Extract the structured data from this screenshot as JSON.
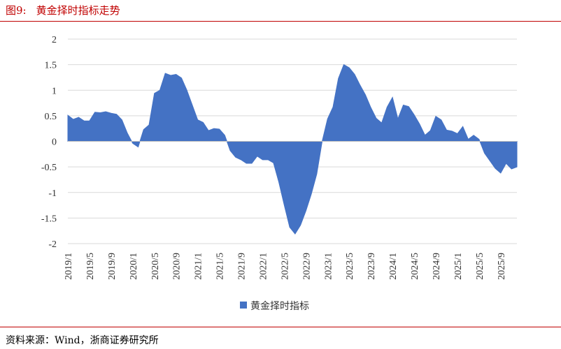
{
  "figure": {
    "number": "图9:",
    "title": "黄金择时指标走势",
    "source": "资料来源：Wind，浙商证券研究所"
  },
  "colors": {
    "title": "#c00000",
    "series": "#4472c4",
    "grid": "#d9d9d9"
  },
  "chart_data": {
    "type": "area",
    "title": "",
    "xlabel": "",
    "ylabel": "",
    "ylim": [
      -2,
      2
    ],
    "yticks": [
      2,
      1.5,
      1,
      0.5,
      0,
      -0.5,
      -1,
      -1.5,
      -2
    ],
    "ytick_labels": [
      "2",
      "1.5",
      "1",
      "0.5",
      "0",
      "-0.5",
      "-1",
      "-1.5",
      "-2"
    ],
    "xtick_labels": [
      "2019/1",
      "2019/5",
      "2019/9",
      "2020/1",
      "2020/5",
      "2020/9",
      "2021/1",
      "2021/5",
      "2021/9",
      "2022/1",
      "2022/5",
      "2022/9",
      "2023/1",
      "2023/5",
      "2023/9",
      "2024/1",
      "2024/5",
      "2024/9",
      "2025/1",
      "2025/5",
      "2025/9"
    ],
    "grid": true,
    "legend": "bottom",
    "x": [
      "2019/1",
      "2019/2",
      "2019/3",
      "2019/4",
      "2019/5",
      "2019/6",
      "2019/7",
      "2019/8",
      "2019/9",
      "2019/10",
      "2019/11",
      "2019/12",
      "2020/1",
      "2020/2",
      "2020/3",
      "2020/4",
      "2020/5",
      "2020/6",
      "2020/7",
      "2020/8",
      "2020/9",
      "2020/10",
      "2020/11",
      "2020/12",
      "2021/1",
      "2021/2",
      "2021/3",
      "2021/4",
      "2021/5",
      "2021/6",
      "2021/7",
      "2021/8",
      "2021/9",
      "2021/10",
      "2021/11",
      "2021/12",
      "2022/1",
      "2022/2",
      "2022/3",
      "2022/4",
      "2022/5",
      "2022/6",
      "2022/7",
      "2022/8",
      "2022/9",
      "2022/10",
      "2022/11",
      "2022/12",
      "2023/1",
      "2023/2",
      "2023/3",
      "2023/4",
      "2023/5",
      "2023/6",
      "2023/7",
      "2023/8",
      "2023/9",
      "2023/10",
      "2023/11",
      "2023/12",
      "2024/1",
      "2024/2",
      "2024/3",
      "2024/4",
      "2024/5",
      "2024/6",
      "2024/7",
      "2024/8",
      "2024/9",
      "2024/10",
      "2024/11",
      "2024/12",
      "2025/1",
      "2025/2",
      "2025/3",
      "2025/4",
      "2025/5",
      "2025/6",
      "2025/7",
      "2025/8",
      "2025/9",
      "2025/10",
      "2025/11",
      "2025/12"
    ],
    "series": [
      {
        "name": "黄金择时指标",
        "values": [
          0.51,
          0.43,
          0.47,
          0.4,
          0.4,
          0.57,
          0.56,
          0.58,
          0.55,
          0.53,
          0.42,
          0.16,
          -0.04,
          -0.11,
          0.23,
          0.32,
          0.94,
          1.0,
          1.33,
          1.29,
          1.31,
          1.24,
          1.0,
          0.71,
          0.42,
          0.37,
          0.21,
          0.25,
          0.24,
          0.12,
          -0.18,
          -0.31,
          -0.36,
          -0.43,
          -0.43,
          -0.29,
          -0.36,
          -0.36,
          -0.42,
          -0.8,
          -1.25,
          -1.68,
          -1.81,
          -1.64,
          -1.36,
          -1.03,
          -0.64,
          0.0,
          0.44,
          0.67,
          1.23,
          1.5,
          1.44,
          1.31,
          1.1,
          0.91,
          0.66,
          0.45,
          0.36,
          0.67,
          0.86,
          0.44,
          0.71,
          0.68,
          0.52,
          0.34,
          0.12,
          0.21,
          0.49,
          0.42,
          0.22,
          0.2,
          0.15,
          0.29,
          0.04,
          0.12,
          0.04,
          -0.23,
          -0.38,
          -0.53,
          -0.62,
          -0.43,
          -0.54,
          -0.5
        ]
      }
    ]
  }
}
